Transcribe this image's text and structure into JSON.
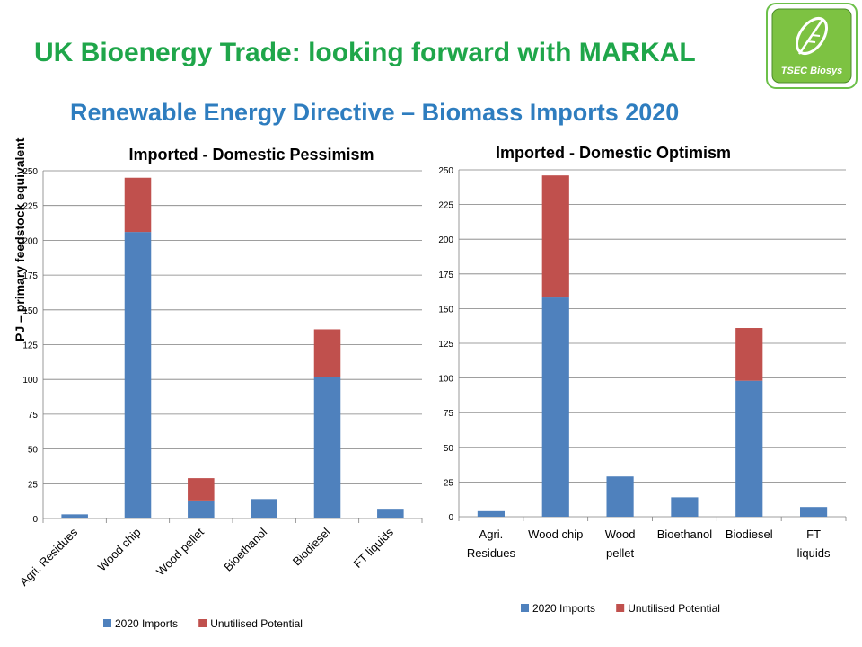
{
  "header": {
    "title": "UK Bioenergy Trade: looking forward with MARKAL",
    "subtitle": "Renewable Energy Directive – Biomass Imports 2020",
    "logo_text": "TSEC Biosys"
  },
  "colors": {
    "imports": "#4f81bd",
    "potential": "#c0504d",
    "title_green": "#1fa64a",
    "subtitle_blue": "#2e7dbf"
  },
  "chart_data": [
    {
      "type": "bar",
      "stacked": true,
      "title": "Imported - Domestic Pessimism",
      "ylabel": "PJ – primary feedstock equivalent",
      "ylim": [
        0,
        250
      ],
      "yticks": [
        0,
        25,
        50,
        75,
        100,
        125,
        150,
        175,
        200,
        225,
        250
      ],
      "categories": [
        "Agri. Residues",
        "Wood chip",
        "Wood pellet",
        "Bioethanol",
        "Biodiesel",
        "FT liquids"
      ],
      "series": [
        {
          "name": "2020 Imports",
          "values": [
            3,
            206,
            13,
            14,
            102,
            7
          ]
        },
        {
          "name": "Unutilised Potential",
          "values": [
            0,
            39,
            16,
            0,
            34,
            0
          ]
        }
      ],
      "legend_position": "bottom",
      "grid": true
    },
    {
      "type": "bar",
      "stacked": true,
      "title": "Imported - Domestic Optimism",
      "ylim": [
        0,
        250
      ],
      "yticks": [
        0,
        25,
        50,
        75,
        100,
        125,
        150,
        175,
        200,
        225,
        250
      ],
      "categories": [
        "Agri. Residues",
        "Wood chip",
        "Wood pellet",
        "Bioethanol",
        "Biodiesel",
        "FT liquids"
      ],
      "series": [
        {
          "name": "2020 Imports",
          "values": [
            4,
            158,
            29,
            14,
            98,
            7
          ]
        },
        {
          "name": "Unutilised Potential",
          "values": [
            0,
            88,
            0,
            0,
            38,
            0
          ]
        }
      ],
      "legend_position": "bottom",
      "grid": true
    }
  ]
}
